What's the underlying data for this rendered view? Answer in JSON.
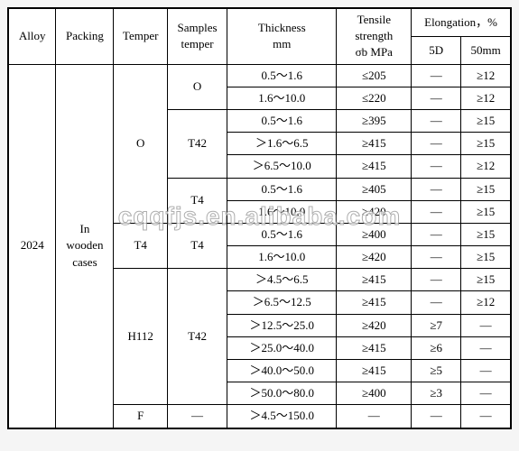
{
  "watermark": "cqqfjs.en.alibaba.com",
  "header": {
    "alloy": "Alloy",
    "packing": "Packing",
    "temper": "Temper",
    "samples_temper": "Samples\ntemper",
    "thickness": "Thickness\nmm",
    "tensile": "Tensile\nstrength\nσb MPa",
    "elongation": "Elongation，%",
    "e5d": "5D",
    "e50mm": "50mm"
  },
  "body": {
    "alloy": "2024",
    "packing": "In\nwooden\ncases",
    "tempers": {
      "O": "O",
      "T4": "T4",
      "H112": "H112",
      "F": "F"
    },
    "samples": {
      "O": "O",
      "T42": "T42",
      "T4": "T4",
      "dash": "—"
    }
  },
  "rows": [
    {
      "th": "0.5～1.6",
      "ts": "≤205",
      "e5": "—",
      "e50": "≥12"
    },
    {
      "th": "1.6～10.0",
      "ts": "≤220",
      "e5": "—",
      "e50": "≥12"
    },
    {
      "th": "0.5～1.6",
      "ts": "≥395",
      "e5": "—",
      "e50": "≥15"
    },
    {
      "th": "＞1.6～6.5",
      "ts": "≥415",
      "e5": "—",
      "e50": "≥15"
    },
    {
      "th": "＞6.5～10.0",
      "ts": "≥415",
      "e5": "—",
      "e50": "≥12"
    },
    {
      "th": "0.5～1.6",
      "ts": "≥405",
      "e5": "—",
      "e50": "≥15"
    },
    {
      "th": "1.6～10.0",
      "ts": "≥420",
      "e5": "—",
      "e50": "≥15"
    },
    {
      "th": "0.5～1.6",
      "ts": "≥400",
      "e5": "—",
      "e50": "≥15"
    },
    {
      "th": "1.6～10.0",
      "ts": "≥420",
      "e5": "—",
      "e50": "≥15"
    },
    {
      "th": "＞4.5～6.5",
      "ts": "≥415",
      "e5": "—",
      "e50": "≥15"
    },
    {
      "th": "＞6.5～12.5",
      "ts": "≥415",
      "e5": "—",
      "e50": "≥12"
    },
    {
      "th": "＞12.5～25.0",
      "ts": "≥420",
      "e5": "≥7",
      "e50": "—"
    },
    {
      "th": "＞25.0～40.0",
      "ts": "≥415",
      "e5": "≥6",
      "e50": "—"
    },
    {
      "th": "＞40.0～50.0",
      "ts": "≥415",
      "e5": "≥5",
      "e50": "—"
    },
    {
      "th": "＞50.0～80.0",
      "ts": "≥400",
      "e5": "≥3",
      "e50": "—"
    },
    {
      "th": "＞4.5～150.0",
      "ts": "—",
      "e5": "—",
      "e50": "—"
    }
  ],
  "style": {
    "colwidths": [
      "48",
      "58",
      "54",
      "60",
      "110",
      "75",
      "50",
      "50"
    ],
    "font_family": "Times New Roman",
    "font_size_pt": 10,
    "border_color": "#000000",
    "background": "#ffffff"
  }
}
